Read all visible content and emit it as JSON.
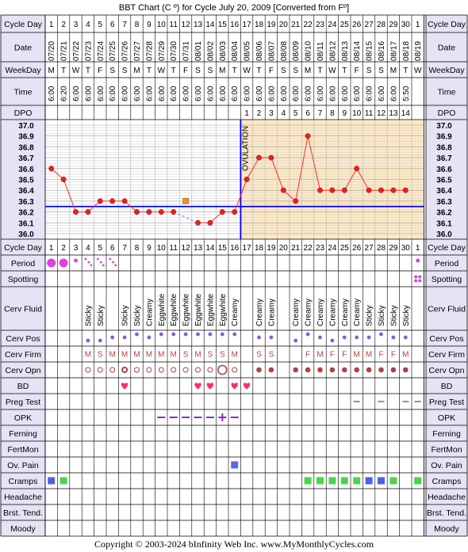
{
  "title": "BBT Chart (C º) for Cycle July 20, 2009  [Converted from Fº]",
  "copyright": "Copyright © 2003-2024 bInfinity Web Inc.    www.MyMonthlyCycles.com",
  "ovulation_label": "OVULATION",
  "row_labels": {
    "cycle_day": "Cycle Day",
    "date": "Date",
    "weekday": "WeekDay",
    "time": "Time",
    "dpo": "DPO",
    "period": "Period",
    "spotting": "Spotting",
    "cerv_fluid": "Cerv Fluid",
    "cerv_pos": "Cerv Pos",
    "cerv_firm": "Cerv Firm",
    "cerv_opn": "Cerv Opn",
    "bd": "BD",
    "preg_test": "Preg Test",
    "opk": "OPK",
    "ferning": "Ferning",
    "fertmon": "FertMon",
    "ov_pain": "Ov. Pain",
    "cramps": "Cramps",
    "headache": "Headache",
    "brst_tend": "Brst. Tend.",
    "moody": "Moody"
  },
  "cycle_days": [
    "1",
    "2",
    "3",
    "4",
    "5",
    "6",
    "7",
    "8",
    "9",
    "10",
    "11",
    "12",
    "13",
    "14",
    "15",
    "16",
    "17",
    "18",
    "19",
    "20",
    "21",
    "22",
    "23",
    "24",
    "25",
    "26",
    "27",
    "28",
    "29",
    "30",
    "1"
  ],
  "dates": [
    "07/20",
    "07/21",
    "07/22",
    "07/23",
    "07/24",
    "07/25",
    "07/26",
    "07/27",
    "07/28",
    "07/29",
    "07/30",
    "07/31",
    "08/01",
    "08/02",
    "08/03",
    "08/04",
    "08/05",
    "08/06",
    "08/07",
    "08/08",
    "08/09",
    "08/10",
    "08/11",
    "08/12",
    "08/13",
    "08/14",
    "08/15",
    "08/16",
    "08/17",
    "08/18",
    "08/19"
  ],
  "weekdays": [
    "M",
    "T",
    "W",
    "T",
    "F",
    "S",
    "S",
    "M",
    "T",
    "W",
    "T",
    "F",
    "S",
    "S",
    "M",
    "T",
    "W",
    "T",
    "F",
    "S",
    "S",
    "M",
    "T",
    "W",
    "T",
    "F",
    "S",
    "S",
    "M",
    "T",
    "W"
  ],
  "times": [
    "6:00",
    "6:20",
    "6:00",
    "6:00",
    "6:00",
    "6:00",
    "6:00",
    "6:00",
    "6:00",
    "6:00",
    "6:00",
    "6:00",
    "6:00",
    "6:00",
    "6:00",
    "6:00",
    "6:00",
    "6:00",
    "6:00",
    "6:00",
    "6:00",
    "6:00",
    "6:00",
    "6:00",
    "6:00",
    "6:00",
    "6:00",
    "6:00",
    "6:00",
    "5:50",
    ""
  ],
  "dpo": [
    "",
    "",
    "",
    "",
    "",
    "",
    "",
    "",
    "",
    "",
    "",
    "",
    "",
    "",
    "",
    "",
    "1",
    "2",
    "3",
    "4",
    "5",
    "6",
    "7",
    "8",
    "9",
    "10",
    "11",
    "12",
    "13",
    "14",
    ""
  ],
  "chart_data": {
    "type": "line",
    "y_ticks": [
      "37.0",
      "36.9",
      "36.8",
      "36.7",
      "36.6",
      "36.5",
      "36.4",
      "36.3",
      "36.2",
      "36.1",
      "36.0"
    ],
    "ylim": [
      36.0,
      37.0
    ],
    "coverline": 36.25,
    "ovulation_day": 16,
    "temps": [
      36.6,
      36.5,
      36.2,
      36.2,
      36.3,
      36.3,
      36.3,
      36.2,
      36.2,
      36.2,
      36.2,
      null,
      36.1,
      36.1,
      36.2,
      36.2,
      36.5,
      36.7,
      36.7,
      36.4,
      36.3,
      36.9,
      36.4,
      36.4,
      36.4,
      36.6,
      36.4,
      36.4,
      36.4,
      36.4,
      null
    ],
    "discarded": [
      {
        "day": 12,
        "value": 36.3
      }
    ],
    "grid": true
  },
  "period": [
    "big",
    "big",
    "small",
    "dots3",
    "dots3",
    "dots3",
    "",
    "",
    "",
    "",
    "",
    "",
    "",
    "",
    "",
    "",
    "",
    "",
    "",
    "",
    "",
    "",
    "",
    "",
    "",
    "",
    "",
    "",
    "",
    "",
    "small"
  ],
  "spotting": [
    "",
    "",
    "",
    "",
    "",
    "",
    "",
    "",
    "",
    "",
    "",
    "",
    "",
    "",
    "",
    "",
    "",
    "",
    "",
    "",
    "",
    "",
    "",
    "",
    "",
    "",
    "",
    "",
    "",
    "",
    "dots4"
  ],
  "cerv_fluid": [
    "",
    "",
    "",
    "Sticky",
    "Sticky",
    "",
    "Sticky",
    "Sticky",
    "Creamy",
    "Eggwhite",
    "Eggwhite",
    "Eggwhite",
    "Eggwhite",
    "Eggwhite",
    "Eggwhite",
    "Creamy",
    "",
    "Creamy",
    "Creamy",
    "",
    "Creamy",
    "Creamy",
    "Creamy",
    "Creamy",
    "Creamy",
    "Creamy",
    "Sticky",
    "Sticky",
    "Sticky",
    "Sticky",
    ""
  ],
  "cerv_pos": [
    "",
    "",
    "",
    "low",
    "low",
    "med",
    "med",
    "high",
    "med",
    "high",
    "high",
    "high",
    "high",
    "high",
    "high",
    "high",
    "",
    "med",
    "med",
    "",
    "low",
    "high",
    "med",
    "low",
    "med",
    "med",
    "med",
    "high",
    "med",
    "med",
    ""
  ],
  "cerv_firm": [
    "",
    "",
    "",
    "M",
    "S",
    "M",
    "M",
    "M",
    "M",
    "M",
    "M",
    "S",
    "M",
    "S",
    "S",
    "M",
    "",
    "S",
    "S",
    "",
    "",
    "F",
    "M",
    "F",
    "F",
    "M",
    "M",
    "F",
    "F",
    "M",
    ""
  ],
  "cerv_opn": [
    "",
    "",
    "",
    "so",
    "so",
    "so",
    "m",
    "so",
    "so",
    "so",
    "so",
    "so",
    "so",
    "so",
    "bo",
    "so",
    "",
    "f",
    "f",
    "",
    "f",
    "f",
    "f",
    "f",
    "f",
    "f",
    "f",
    "f",
    "f",
    "f",
    ""
  ],
  "bd": [
    "",
    "",
    "",
    "",
    "",
    "",
    "y",
    "",
    "",
    "",
    "",
    "",
    "y",
    "y",
    "",
    "y",
    "y",
    "",
    "",
    "",
    "",
    "",
    "",
    "",
    "",
    "",
    "",
    "",
    "",
    "",
    ""
  ],
  "preg_test": [
    "",
    "",
    "",
    "",
    "",
    "",
    "",
    "",
    "",
    "",
    "",
    "",
    "",
    "",
    "",
    "",
    "",
    "",
    "",
    "",
    "",
    "",
    "",
    "",
    "",
    "y",
    "",
    "y",
    "",
    "y",
    "y"
  ],
  "opk": [
    "",
    "",
    "",
    "",
    "",
    "",
    "",
    "",
    "",
    "neg",
    "neg",
    "neg",
    "neg",
    "neg",
    "pos",
    "neg",
    "",
    "",
    "",
    "",
    "",
    "",
    "",
    "",
    "",
    "",
    "",
    "",
    "",
    "",
    ""
  ],
  "ov_pain": [
    "",
    "",
    "",
    "",
    "",
    "",
    "",
    "",
    "",
    "",
    "",
    "",
    "",
    "",
    "",
    "y",
    "",
    "",
    "",
    "",
    "",
    "",
    "",
    "",
    "",
    "",
    "",
    "",
    "",
    "",
    ""
  ],
  "cramps": [
    "y",
    "y",
    "",
    "",
    "",
    "",
    "",
    "",
    "",
    "",
    "",
    "",
    "",
    "",
    "",
    "",
    "",
    "",
    "",
    "",
    "",
    "y",
    "y",
    "y",
    "y",
    "y",
    "b",
    "b",
    "y",
    "",
    "y"
  ],
  "colors": {
    "temp_line": "#ff2a2a",
    "temp_dot": "#e32222",
    "coverline": "#0000ff",
    "luteal_bg": "#fde8c4",
    "label_bg": "#e7e3f5",
    "period": "#e040e0",
    "cerv_pos": "#8a5ad8",
    "cerv_firm": "#c04040",
    "cerv_opn": "#b0404a",
    "bd": "#ff2a7a",
    "opk": "#8a2ad8",
    "cramps_green": "#4cd44c",
    "cramps_blue": "#5060e0",
    "ov_pain": "#5a6ad8"
  }
}
